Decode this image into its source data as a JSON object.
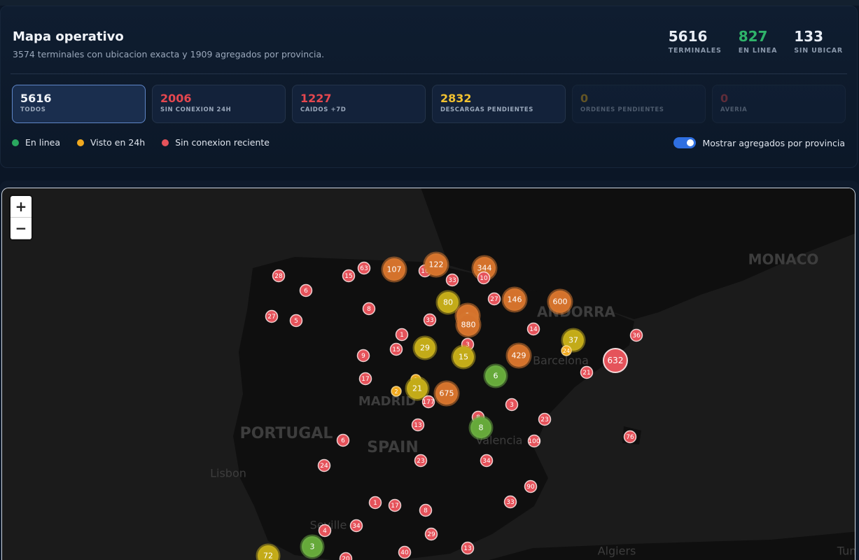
{
  "header": {
    "title": "Mapa operativo",
    "subtitle": "3574 terminales con ubicacion exacta y 1909 agregados por provincia.",
    "stats": [
      {
        "value": 5616,
        "label": "TERMINALES"
      },
      {
        "value": 827,
        "label": "EN LINEA"
      },
      {
        "value": 133,
        "label": "SIN UBICAR"
      }
    ]
  },
  "filters": [
    {
      "value": 5616,
      "label": "TODOS"
    },
    {
      "value": 2006,
      "label": "SIN CONEXION 24H"
    },
    {
      "value": 1227,
      "label": "CAIDOS +7D"
    },
    {
      "value": 2832,
      "label": "DESCARGAS PENDIENTES"
    },
    {
      "value": 0,
      "label": "ORDENES PENDIENTES"
    },
    {
      "value": 0,
      "label": "AVERIA"
    }
  ],
  "legend": [
    "En linea",
    "Visto en 24h",
    "Sin conexion reciente"
  ],
  "toggle": "Mostrar agregados por provincia",
  "zoom": [
    "+",
    "−"
  ],
  "map": {
    "labels": [
      "MONACO",
      "ANDORRA",
      "Barcelona",
      "MADRID",
      "PORTUGAL",
      "SPAIN",
      "Valencia",
      "Lisbon",
      "Seville",
      "Algiers",
      "Tunis"
    ],
    "markers": [
      28,
      6,
      15,
      63,
      107,
      10,
      122,
      33,
      344,
      10,
      27,
      5,
      8,
      80,
      27,
      146,
      600,
      33,
      1,
      880,
      14,
      1,
      37,
      36,
      29,
      15,
      3,
      15,
      429,
      24,
      632,
      9,
      6,
      21,
      17,
      1,
      21,
      2,
      675,
      177,
      3,
      8,
      8,
      23,
      13,
      6,
      100,
      76,
      23,
      34,
      24,
      90,
      1,
      17,
      33,
      8,
      34,
      4,
      29,
      3,
      72,
      13,
      40,
      20
    ]
  }
}
